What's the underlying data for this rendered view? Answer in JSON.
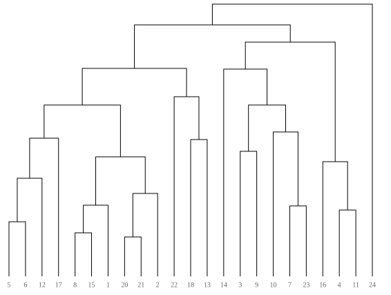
{
  "chart_data": {
    "type": "dendrogram",
    "leaves": [
      "5",
      "6",
      "12",
      "17",
      "8",
      "15",
      "1",
      "20",
      "21",
      "2",
      "22",
      "18",
      "13",
      "14",
      "3",
      "9",
      "10",
      "7",
      "23",
      "16",
      "4",
      "11",
      "24"
    ],
    "merges": [
      {
        "children": [
          0,
          1
        ],
        "height": 79
      },
      {
        "children": [
          23,
          2
        ],
        "height": 142
      },
      {
        "children": [
          24,
          3
        ],
        "height": 200
      },
      {
        "children": [
          4,
          5
        ],
        "height": 63
      },
      {
        "children": [
          26,
          6
        ],
        "height": 103
      },
      {
        "children": [
          7,
          8
        ],
        "height": 57
      },
      {
        "children": [
          28,
          9
        ],
        "height": 120
      },
      {
        "children": [
          27,
          29
        ],
        "height": 173
      },
      {
        "children": [
          25,
          30
        ],
        "height": 248
      },
      {
        "children": [
          11,
          12
        ],
        "height": 198
      },
      {
        "children": [
          10,
          32
        ],
        "height": 260
      },
      {
        "children": [
          31,
          33
        ],
        "height": 301
      },
      {
        "children": [
          14,
          15
        ],
        "height": 181
      },
      {
        "children": [
          17,
          18
        ],
        "height": 102
      },
      {
        "children": [
          16,
          36
        ],
        "height": 209
      },
      {
        "children": [
          35,
          37
        ],
        "height": 248
      },
      {
        "children": [
          13,
          38
        ],
        "height": 300
      },
      {
        "children": [
          20,
          21
        ],
        "height": 96
      },
      {
        "children": [
          19,
          40
        ],
        "height": 166
      },
      {
        "children": [
          39,
          41
        ],
        "height": 339
      },
      {
        "children": [
          34,
          42
        ],
        "height": 364
      },
      {
        "children": [
          43,
          22
        ],
        "height": 394
      }
    ],
    "ylim": [
      0,
      400
    ],
    "color": "#000000"
  }
}
